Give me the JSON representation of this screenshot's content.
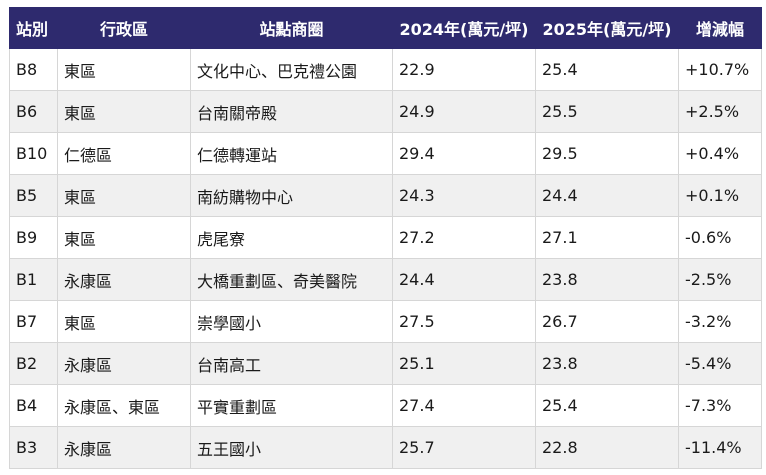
{
  "headers": [
    "站別",
    "行政區",
    "站點商圈",
    "2024年(萬元/坪)",
    "2025年(萬元/坪)",
    "增減幅"
  ],
  "rows": [
    [
      "B8",
      "東區",
      "文化中心、巴克禮公園",
      "22.9",
      "25.4",
      "+10.7%"
    ],
    [
      "B6",
      "東區",
      "台南關帝殿",
      "24.9",
      "25.5",
      "+2.5%"
    ],
    [
      "B10",
      "仁德區",
      "仁德轉運站",
      "29.4",
      "29.5",
      "+0.4%"
    ],
    [
      "B5",
      "東區",
      "南紡購物中心",
      "24.3",
      "24.4",
      "+0.1%"
    ],
    [
      "B9",
      "東區",
      "虎尾寮",
      "27.2",
      "27.1",
      "-0.6%"
    ],
    [
      "B1",
      "永康區",
      "大橋重劃區、奇美醫院",
      "24.4",
      "23.8",
      "-2.5%"
    ],
    [
      "B7",
      "東區",
      "崇學國小",
      "27.5",
      "26.7",
      "-3.2%"
    ],
    [
      "B2",
      "永康區",
      "台南高工",
      "25.1",
      "23.8",
      "-5.4%"
    ],
    [
      "B4",
      "永康區、東區",
      "平實重劃區",
      "27.4",
      "25.4",
      "-7.3%"
    ],
    [
      "B3",
      "永康區",
      "五王國小",
      "25.7",
      "22.8",
      "-11.4%"
    ]
  ],
  "colors": {
    "header_bg": "#2e2a6e",
    "header_text": "#ffffff",
    "row_alt_bg": "#f0f0f0",
    "border": "#d6d6d6"
  }
}
